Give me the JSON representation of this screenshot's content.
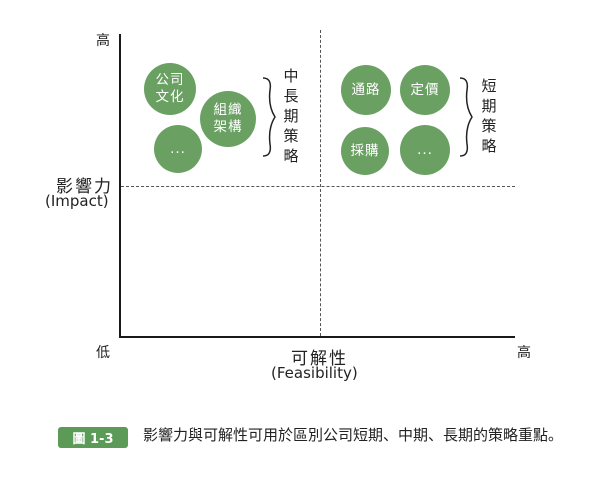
{
  "axes": {
    "y_high": "高",
    "y_low": "低",
    "x_high": "高",
    "y_label": "影響力",
    "y_label_en": "(Impact)",
    "x_label": "可解性",
    "x_label_en": "(Feasibility)"
  },
  "left_group": {
    "circles": [
      {
        "line1": "公司",
        "line2": "文化"
      },
      {
        "line1": "組織",
        "line2": "架構"
      },
      {
        "line1": "...",
        "line2": ""
      }
    ],
    "label_chars": [
      "中",
      "長",
      "期",
      "策",
      "略"
    ]
  },
  "right_group": {
    "circles": [
      {
        "line1": "通路",
        "line2": ""
      },
      {
        "line1": "定價",
        "line2": ""
      },
      {
        "line1": "採購",
        "line2": ""
      },
      {
        "line1": "...",
        "line2": ""
      }
    ],
    "label_chars": [
      "短",
      "期",
      "策",
      "略"
    ]
  },
  "figure": {
    "badge": "圖 1-3",
    "caption": "影響力與可解性可用於區別公司短期、中期、長期的策略重點。"
  },
  "colors": {
    "circle_fill": "#6aa163",
    "badge_fill": "#5b9a57",
    "axis": "#1a1a1a"
  }
}
